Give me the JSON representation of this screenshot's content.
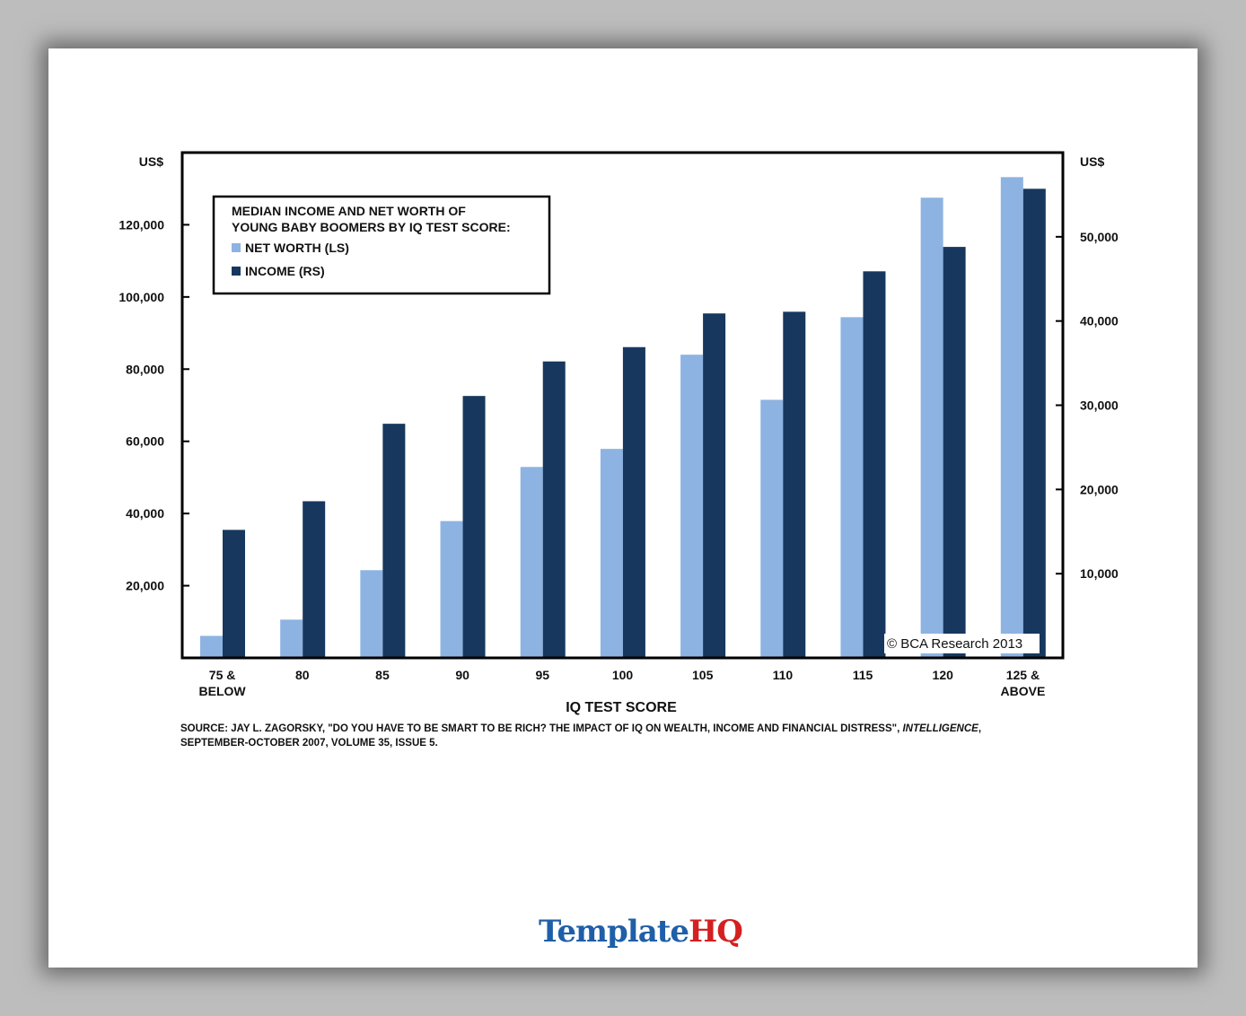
{
  "chart_data": {
    "type": "bar",
    "title": "MEDIAN INCOME AND NET WORTH OF YOUNG BABY BOOMERS BY IQ TEST SCORE:",
    "title_lines": [
      "MEDIAN INCOME AND NET WORTH OF",
      "YOUNG BABY BOOMERS BY IQ TEST SCORE:"
    ],
    "xlabel": "IQ TEST SCORE",
    "ylabel_left": "US$",
    "ylabel_right": "US$",
    "categories": [
      "75 & BELOW",
      "80",
      "85",
      "90",
      "95",
      "100",
      "105",
      "110",
      "115",
      "120",
      "125 & ABOVE"
    ],
    "category_lines": [
      [
        "75 &",
        "BELOW"
      ],
      [
        "80"
      ],
      [
        "85"
      ],
      [
        "90"
      ],
      [
        "95"
      ],
      [
        "100"
      ],
      [
        "105"
      ],
      [
        "110"
      ],
      [
        "115"
      ],
      [
        "120"
      ],
      [
        "125 &",
        "ABOVE"
      ]
    ],
    "series": [
      {
        "name": "NET WORTH (LS)",
        "axis": "left",
        "color": "#8db3e2",
        "values": [
          6100,
          10600,
          24300,
          37900,
          52900,
          57900,
          84000,
          71500,
          94400,
          127500,
          133200
        ]
      },
      {
        "name": "INCOME (RS)",
        "axis": "right",
        "color": "#17375e",
        "values": [
          15200,
          18600,
          27800,
          31100,
          35200,
          36900,
          40900,
          41100,
          45900,
          48800,
          55700
        ]
      }
    ],
    "ylim_left": [
      0,
      140000
    ],
    "ylim_right": [
      0,
      60000
    ],
    "yticks_left": [
      20000,
      40000,
      60000,
      80000,
      100000,
      120000
    ],
    "ytick_labels_left": [
      "20,000",
      "40,000",
      "60,000",
      "80,000",
      "100,000",
      "120,000"
    ],
    "yticks_right": [
      10000,
      20000,
      30000,
      40000,
      50000
    ],
    "ytick_labels_right": [
      "10,000",
      "20,000",
      "30,000",
      "40,000",
      "50,000"
    ],
    "grid": false,
    "legend_placement": "top-left",
    "copyright": "© BCA Research 2013"
  },
  "source": {
    "text_before": "SOURCE: JAY L. ZAGORSKY, \"DO YOU HAVE TO BE SMART TO BE RICH? THE IMPACT OF IQ ON WEALTH, INCOME AND FINANCIAL DISTRESS\", ",
    "journal": "INTELLIGENCE",
    "text_after": ", SEPTEMBER-OCTOBER 2007, VOLUME 35, ISSUE 5."
  },
  "watermark": {
    "part1": "Template",
    "part2": "HQ"
  }
}
